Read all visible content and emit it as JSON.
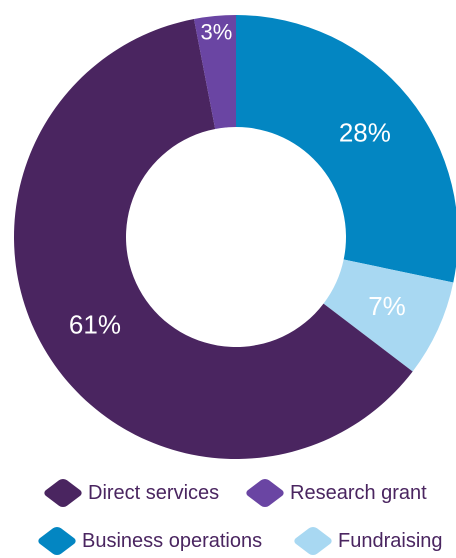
{
  "chart_data": {
    "type": "pie",
    "variant": "donut",
    "categories": [
      "Direct services",
      "Research grant",
      "Business operations",
      "Fundraising"
    ],
    "values": [
      61,
      3,
      28,
      7
    ],
    "labels": [
      "61%",
      "3%",
      "28%",
      "7%"
    ],
    "colors": [
      "#4a2560",
      "#6a45a3",
      "#0386c2",
      "#a8d8f2"
    ],
    "start": "12 o'clock",
    "order_clockwise": [
      "Business operations",
      "Fundraising",
      "Direct services",
      "Research grant"
    ],
    "legend_position": "bottom"
  },
  "legend": {
    "items": [
      {
        "label": "Direct services",
        "color": "#4a2560"
      },
      {
        "label": "Research grant",
        "color": "#6a45a3"
      },
      {
        "label": "Business operations",
        "color": "#0386c2"
      },
      {
        "label": "Fundraising",
        "color": "#a8d8f2"
      }
    ]
  }
}
